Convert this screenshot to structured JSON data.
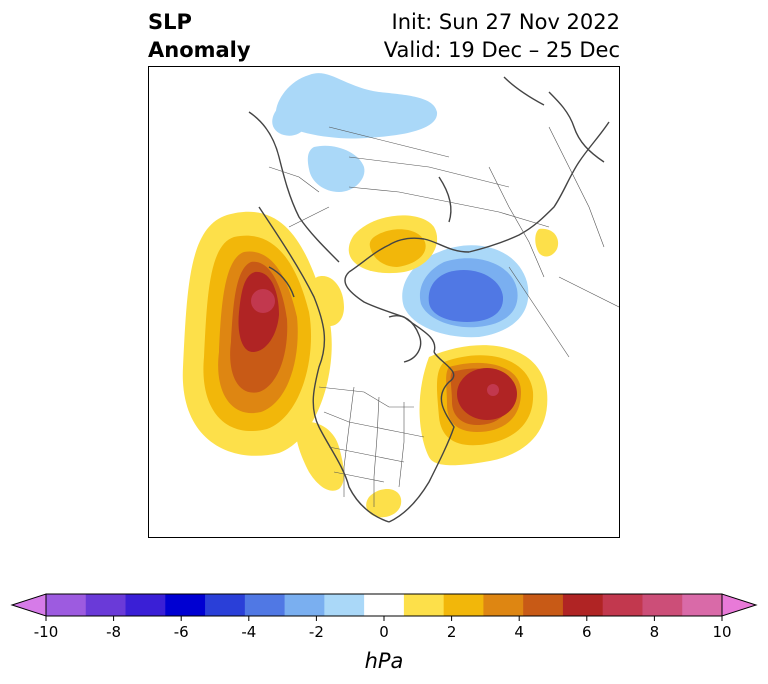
{
  "title": {
    "left_line1": "SLP",
    "left_line2": "Anomaly",
    "init": "Init: Sun 27 Nov 2022",
    "valid": "Valid: 19 Dec – 25 Dec"
  },
  "colorbar": {
    "label": "hPa",
    "ticks": [
      "-10",
      "-8",
      "-6",
      "-4",
      "-2",
      "0",
      "2",
      "4",
      "6",
      "8",
      "10"
    ],
    "colors": [
      "#d67be8",
      "#9d5be0",
      "#6a3ad8",
      "#3a1fd6",
      "#0000d2",
      "#2a3fd8",
      "#5078e4",
      "#7aaff0",
      "#aad8f8",
      "#ffffff",
      "#fde04a",
      "#f2b70a",
      "#de8612",
      "#c85a16",
      "#b02424",
      "#c2384e",
      "#cc4e78",
      "#d96aa8",
      "#e87ad8"
    ],
    "extend": "both"
  },
  "map": {
    "projection": "north-polar-stereographic",
    "features": [
      {
        "name": "north-pacific-high-anomaly",
        "sign": "positive",
        "peak_hpa": 10
      },
      {
        "name": "north-atlantic-high-anomaly",
        "sign": "positive",
        "peak_hpa": 9
      },
      {
        "name": "barents-kara-low-anomaly",
        "sign": "negative",
        "peak_hpa": -5
      },
      {
        "name": "russia-low-anomaly",
        "sign": "negative",
        "peak_hpa": -2
      },
      {
        "name": "east-siberia-high-anomaly",
        "sign": "positive",
        "peak_hpa": 3
      },
      {
        "name": "western-us-high-anomaly",
        "sign": "positive",
        "peak_hpa": 2
      },
      {
        "name": "gulf-of-mexico-high-anomaly",
        "sign": "positive",
        "peak_hpa": 2
      }
    ]
  }
}
